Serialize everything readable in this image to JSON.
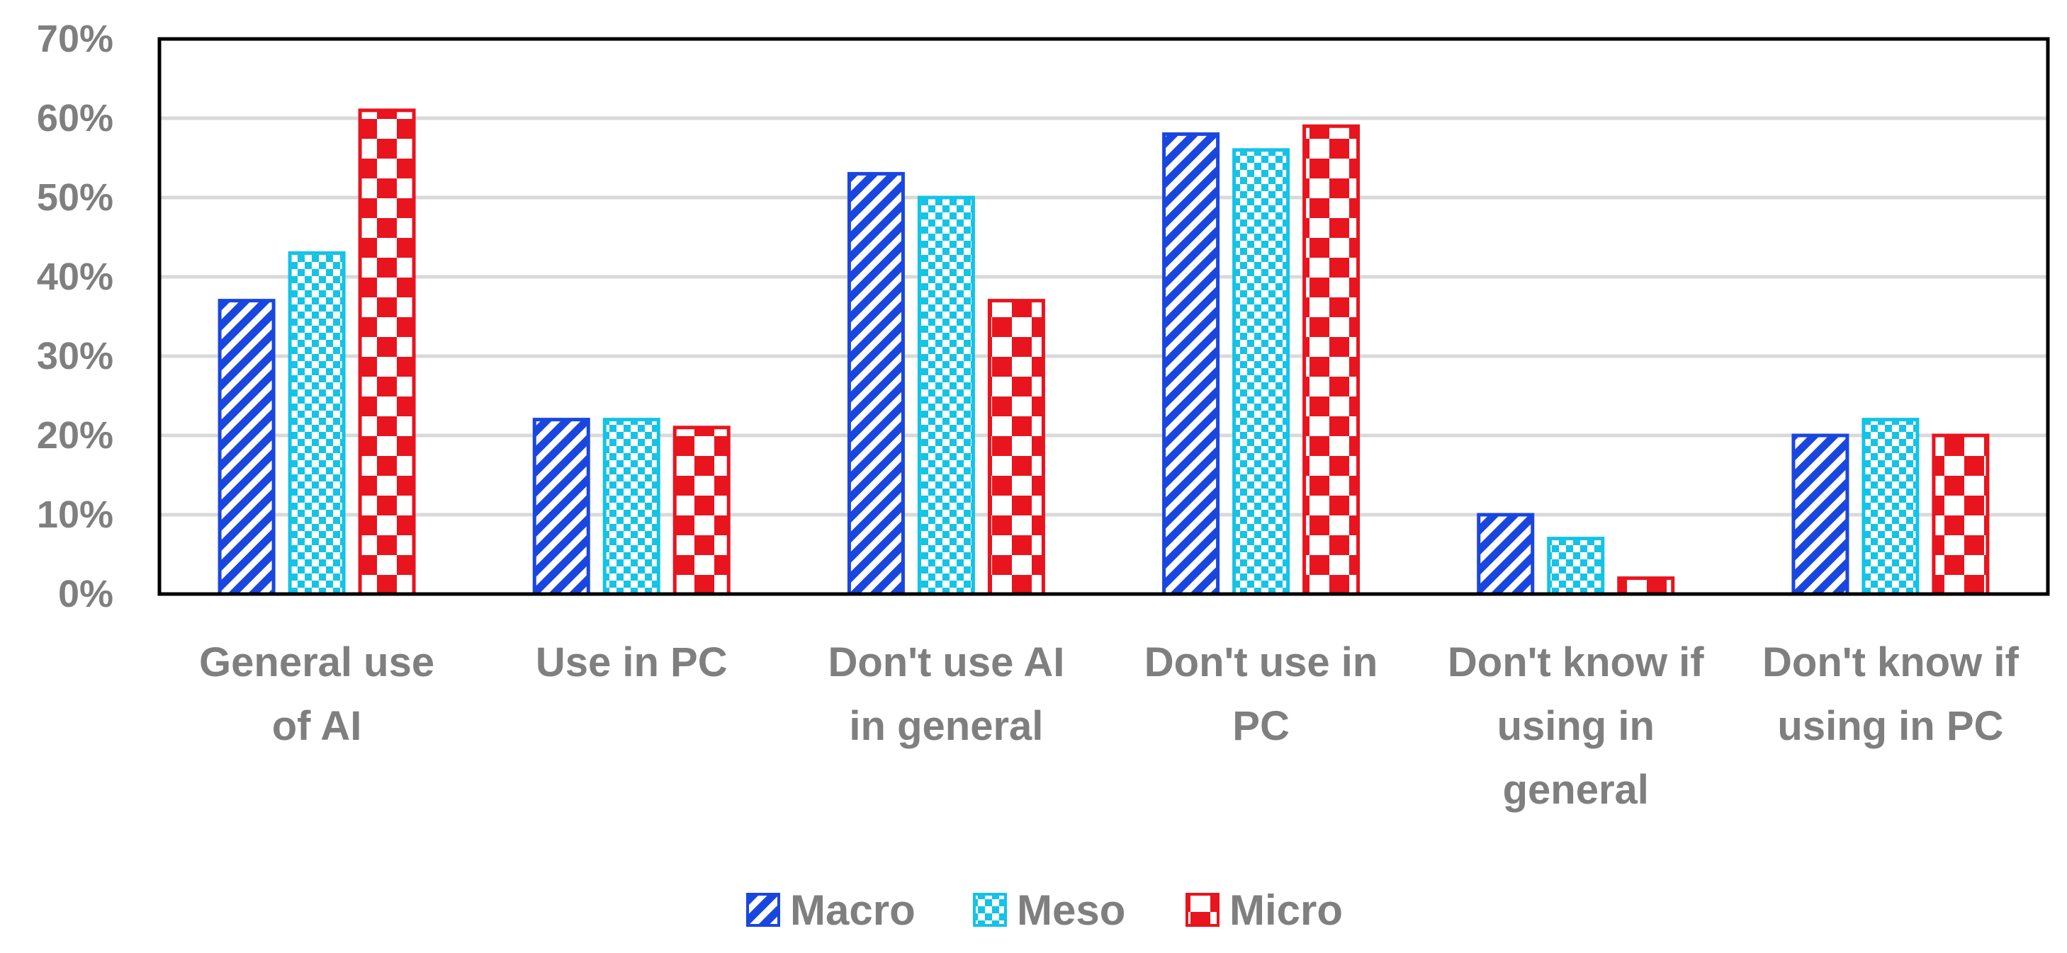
{
  "chart_data": {
    "type": "bar",
    "categories": [
      [
        "General use",
        "of AI"
      ],
      [
        "Use in PC"
      ],
      [
        "Don't use AI",
        "in general"
      ],
      [
        "Don't use in",
        "PC"
      ],
      [
        "Don't know if",
        "using in",
        "general"
      ],
      [
        "Don't know if",
        "using in PC"
      ]
    ],
    "series": [
      {
        "name": "Macro",
        "values": [
          37,
          22,
          53,
          58,
          10,
          20
        ],
        "color": "#1a46e0",
        "pattern": "diagonal-stripes"
      },
      {
        "name": "Meso",
        "values": [
          43,
          22,
          50,
          56,
          7,
          22
        ],
        "color": "#14c3e6",
        "pattern": "checkerboard-fine"
      },
      {
        "name": "Micro",
        "values": [
          61,
          21,
          37,
          59,
          2,
          20
        ],
        "color": "#e8141e",
        "pattern": "checkerboard-large"
      }
    ],
    "yticks": [
      "0%",
      "10%",
      "20%",
      "30%",
      "40%",
      "50%",
      "60%",
      "70%"
    ],
    "ylim": [
      0,
      70
    ],
    "unit": "%",
    "grid": true,
    "legend_position": "bottom-center",
    "title": "",
    "xlabel": "",
    "ylabel": ""
  }
}
